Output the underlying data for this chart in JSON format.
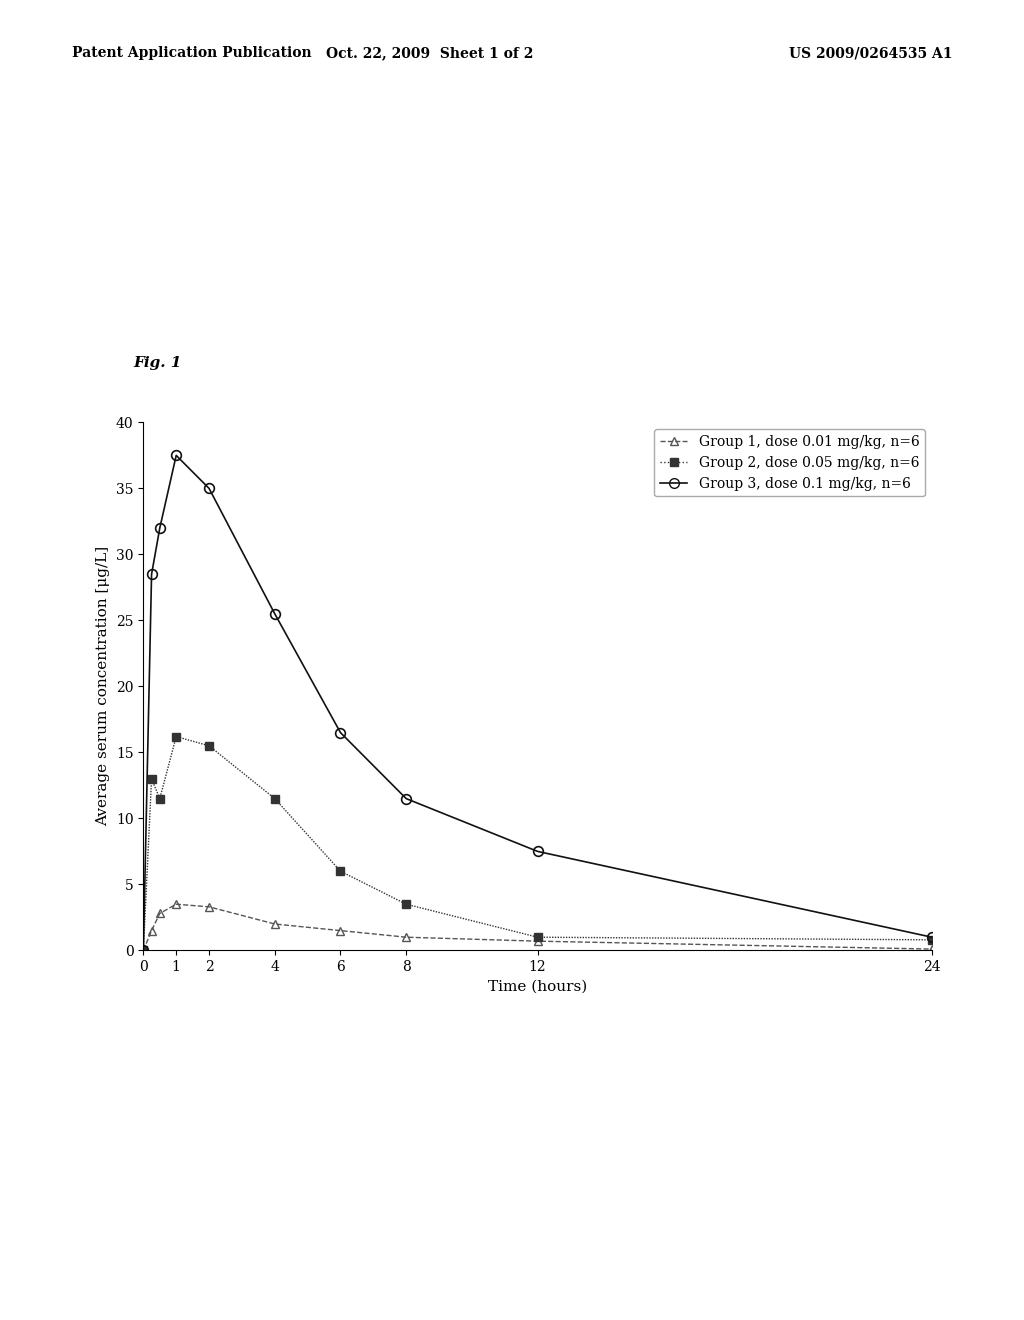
{
  "title_header": "Patent Application Publication",
  "date_header": "Oct. 22, 2009  Sheet 1 of 2",
  "patent_header": "US 2009/0264535 A1",
  "fig_label": "Fig. 1",
  "xlabel": "Time (hours)",
  "ylabel": "Average serum concentration [μg/L]",
  "xlim": [
    0,
    24
  ],
  "ylim": [
    0,
    40
  ],
  "yticks": [
    0,
    5,
    10,
    15,
    20,
    25,
    30,
    35,
    40
  ],
  "xticks": [
    0,
    1,
    2,
    4,
    6,
    8,
    12,
    24
  ],
  "group1": {
    "label": "Group 1, dose 0.01 mg/kg, n=6",
    "x": [
      0,
      0.25,
      0.5,
      1,
      2,
      4,
      6,
      8,
      12,
      24
    ],
    "y": [
      0,
      1.5,
      2.8,
      3.5,
      3.3,
      2.0,
      1.5,
      1.0,
      0.7,
      0.1
    ],
    "linestyle": "--",
    "marker": "^",
    "color": "#555555"
  },
  "group2": {
    "label": "Group 2, dose 0.05 mg/kg, n=6",
    "x": [
      0,
      0.25,
      0.5,
      1,
      2,
      4,
      6,
      8,
      12,
      24
    ],
    "y": [
      0,
      13.0,
      11.5,
      16.2,
      15.5,
      11.5,
      6.0,
      3.5,
      1.0,
      0.8
    ],
    "linestyle": ":",
    "marker": "s",
    "color": "#333333"
  },
  "group3": {
    "label": "Group 3, dose 0.1 mg/kg, n=6",
    "x": [
      0,
      0.25,
      0.5,
      1,
      2,
      4,
      6,
      8,
      12,
      24
    ],
    "y": [
      0,
      28.5,
      32.0,
      37.5,
      35.0,
      25.5,
      16.5,
      11.5,
      7.5,
      1.0
    ],
    "linestyle": "-",
    "marker": "o",
    "color": "#111111"
  },
  "background_color": "#ffffff",
  "font_size_axis": 11,
  "font_size_tick": 10,
  "font_size_legend": 10,
  "font_size_header": 10,
  "font_size_fig_label": 11
}
